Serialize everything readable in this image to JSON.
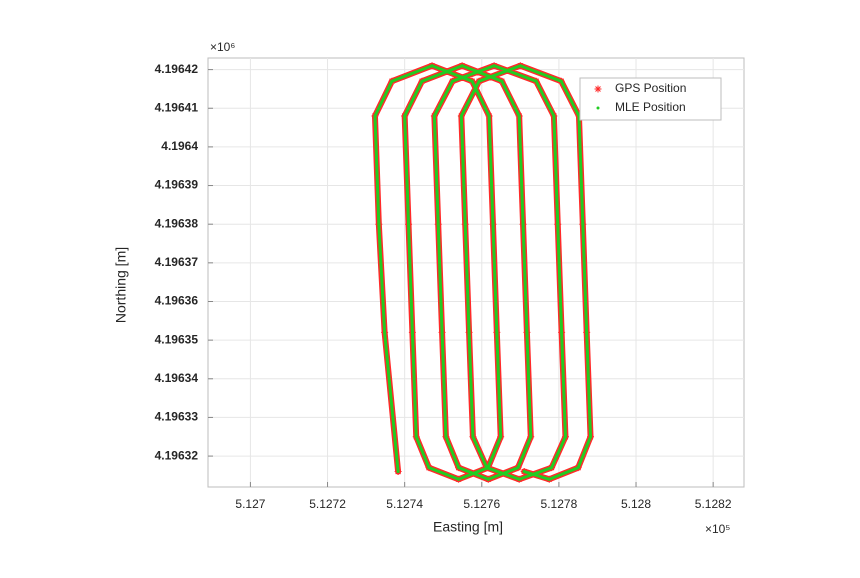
{
  "chart_data": {
    "type": "line",
    "xlabel": "Easting [m]",
    "ylabel": "Northing [m]",
    "x_exponent": "×10⁵",
    "y_exponent": "×10⁶",
    "xlim": [
      5.12689,
      5.12828
    ],
    "ylim": [
      4.196312,
      4.196423
    ],
    "xticks": [
      5.127,
      5.1272,
      5.1274,
      5.1276,
      5.1278,
      5.128,
      5.1282
    ],
    "yticks": [
      4.19632,
      4.19633,
      4.19634,
      4.19635,
      4.19636,
      4.19637,
      4.19638,
      4.19639,
      4.1964,
      4.19641,
      4.19642
    ],
    "grid": true,
    "legend": "northeast",
    "x": [
      5.127383,
      5.127348,
      5.127333,
      5.127323,
      5.127367,
      5.127471,
      5.127575,
      5.127619,
      5.127629,
      5.127639,
      5.127649,
      5.127616,
      5.12754,
      5.127463,
      5.12743,
      5.12742,
      5.12741,
      5.1274,
      5.127445,
      5.127549,
      5.127652,
      5.127697,
      5.127707,
      5.127717,
      5.127727,
      5.127694,
      5.127617,
      5.12754,
      5.127507,
      5.127497,
      5.127487,
      5.127477,
      5.127524,
      5.127632,
      5.127741,
      5.127787,
      5.127797,
      5.127807,
      5.127817,
      5.127781,
      5.127697,
      5.127613,
      5.127577,
      5.127567,
      5.127557,
      5.127547,
      5.127593,
      5.1277,
      5.127806,
      5.127852,
      5.127862,
      5.127872,
      5.127882,
      5.12785,
      5.127775,
      5.12771
    ],
    "series": [
      {
        "name": "GPS Position",
        "color": "#ff2a2a",
        "marker": "asterisk",
        "values": [
          4.196316,
          4.196352,
          4.19638,
          4.196408,
          4.196417,
          4.196421,
          4.196417,
          4.196408,
          4.19638,
          4.196352,
          4.196325,
          4.196317,
          4.196314,
          4.196317,
          4.196325,
          4.196352,
          4.19638,
          4.196408,
          4.196417,
          4.196421,
          4.196417,
          4.196408,
          4.19638,
          4.196352,
          4.196325,
          4.196317,
          4.196314,
          4.196317,
          4.196325,
          4.196352,
          4.19638,
          4.196408,
          4.196417,
          4.196421,
          4.196417,
          4.196408,
          4.19638,
          4.196352,
          4.196325,
          4.196317,
          4.196314,
          4.196317,
          4.196325,
          4.196352,
          4.19638,
          4.196408,
          4.196417,
          4.196421,
          4.196417,
          4.196408,
          4.19638,
          4.196352,
          4.196325,
          4.196317,
          4.196314,
          4.196316
        ]
      },
      {
        "name": "MLE Position",
        "color": "#22cc22",
        "marker": "dot",
        "values": [
          4.196316,
          4.196352,
          4.19638,
          4.196408,
          4.196417,
          4.196421,
          4.196417,
          4.196408,
          4.19638,
          4.196352,
          4.196325,
          4.196317,
          4.196314,
          4.196317,
          4.196325,
          4.196352,
          4.19638,
          4.196408,
          4.196417,
          4.196421,
          4.196417,
          4.196408,
          4.19638,
          4.196352,
          4.196325,
          4.196317,
          4.196314,
          4.196317,
          4.196325,
          4.196352,
          4.19638,
          4.196408,
          4.196417,
          4.196421,
          4.196417,
          4.196408,
          4.19638,
          4.196352,
          4.196325,
          4.196317,
          4.196314,
          4.196317,
          4.196325,
          4.196352,
          4.19638,
          4.196408,
          4.196417,
          4.196421,
          4.196417,
          4.196408,
          4.19638,
          4.196352,
          4.196325,
          4.196317,
          4.196314,
          4.196316
        ]
      }
    ]
  }
}
